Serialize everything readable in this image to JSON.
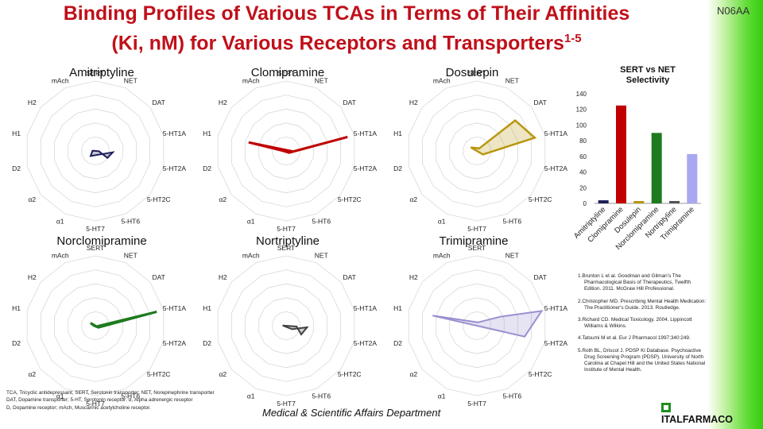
{
  "title": {
    "line1": "Binding Profiles of Various TCAs in Terms of Their Affinities",
    "line2": "(Ki, nM) for Various Receptors and Transporters",
    "superscript": "1-5"
  },
  "code_label": "N06AA",
  "axis_labels": [
    "SERT",
    "NET",
    "DAT",
    "5-HT1A",
    "5-HT2A",
    "5-HT2C",
    "5-HT6",
    "5-HT7",
    "α1",
    "α2",
    "D2",
    "H1",
    "H2",
    "mAch"
  ],
  "radars": [
    {
      "name": "Amitriptyline",
      "color": "#1c1f5a"
    },
    {
      "name": "Clomipramine",
      "color": "#c00000"
    },
    {
      "name": "Dosulepin",
      "color": "#b8960e"
    },
    {
      "name": "Norclomipramine",
      "color": "#1e7a1e"
    },
    {
      "name": "Nortriptyline",
      "color": "#404040"
    },
    {
      "name": "Trimipramine",
      "color": "#9c8fd0"
    }
  ],
  "chart_data": {
    "type": "bar",
    "title": "SERT vs NET Selectivity",
    "categories": [
      "Amitriptyline",
      "Clomipramine",
      "Dosulepin",
      "Norclomipramine",
      "Nortriptyline",
      "Trimipramine"
    ],
    "values": [
      4,
      125,
      3,
      90,
      3,
      63
    ],
    "colors": [
      "#1c1f5a",
      "#c00000",
      "#b8960e",
      "#1e7a1e",
      "#555555",
      "#a8a8f0"
    ],
    "ylim": [
      0,
      140
    ],
    "yticks": [
      0,
      20,
      40,
      60,
      80,
      100,
      120,
      140
    ],
    "grid": false
  },
  "references": [
    "1.Brunton L et al. Goodman and Gilman's The Pharmacological Basis of Therapeutics, Twelfth Edition. 2011. McGraw Hill Professional.",
    "2.Christopher MD. Prescribing Mental Health Medication: The Practitioner's Guide. 2013. Routledge.",
    "3.Richard CD. Medical Toxicology. 2004. Lippincott Williams & Wilkins.",
    "4.Tatsumi M et al. Eur J Pharmacol 1997;340:249.",
    "5.Roth BL, Driscol J. PDSP Ki Database. Psychoactive Drug Screening Program (PDSP). University of North Carolina at Chapel Hill and the United States National Institute of Mental Health."
  ],
  "abbreviations": [
    "TCA, Tricyclic antidepressant; SERT, Serotonin transporter; NET, Norepinephrine transporter",
    "DAT, Dopamine transporter; 5-HT, Serotonin receptor; α, Alpha adrenergic receptor",
    "D, Dopamine receptor; mAch, Muscarinic acetylcholine receptor."
  ],
  "footer": "Medical & Scientific Affairs Department",
  "logo_text": "ITALFARMACO"
}
